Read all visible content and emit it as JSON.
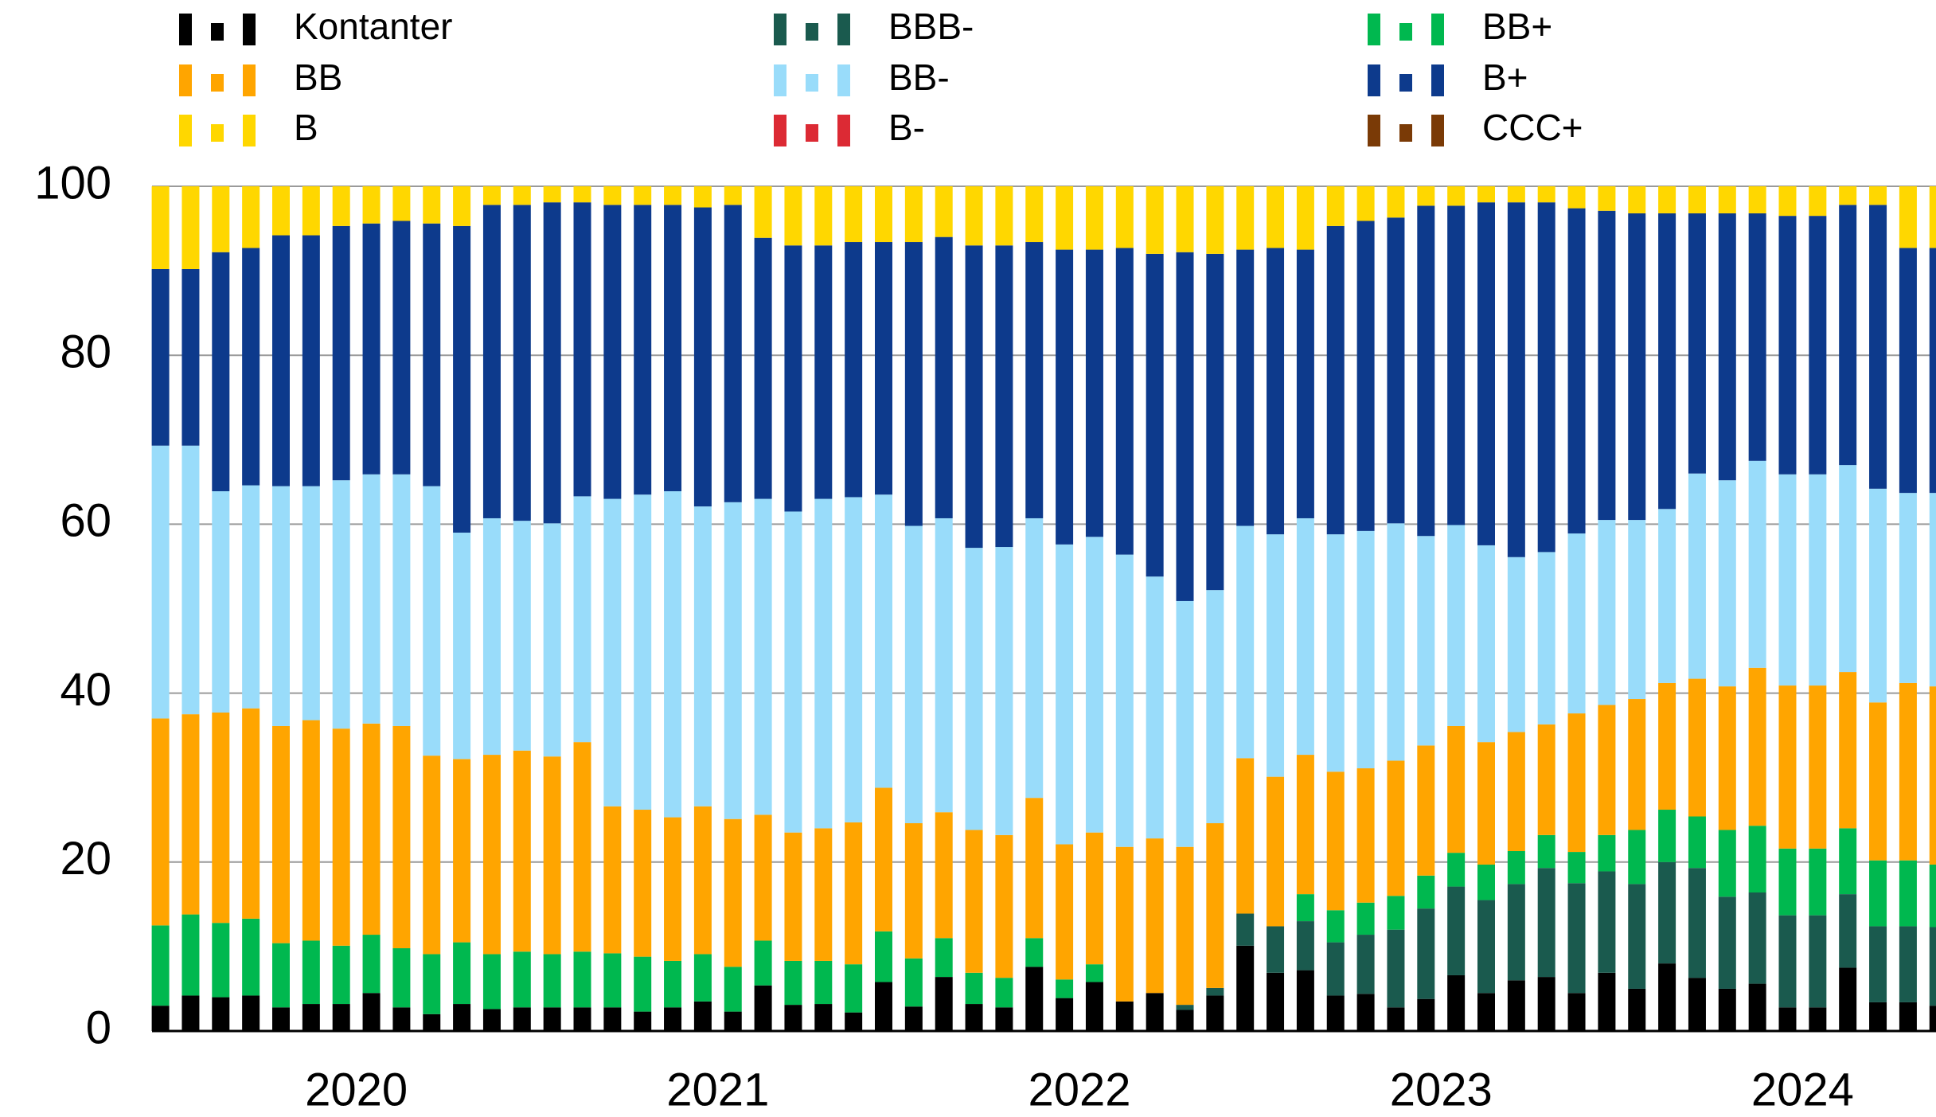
{
  "chart_data": {
    "type": "bar",
    "stacked": true,
    "categories": [
      null,
      "2020",
      null,
      null,
      null,
      null,
      null,
      null,
      null,
      null,
      null,
      null,
      null,
      "2021",
      null,
      null,
      null,
      null,
      null,
      null,
      null,
      null,
      null,
      null,
      null,
      "2022",
      null,
      null,
      null,
      null,
      null,
      null,
      null,
      null,
      null,
      null,
      null,
      "2023",
      null,
      null,
      null,
      null,
      null,
      null,
      null,
      null,
      null,
      null,
      null,
      "2024",
      null,
      null,
      null,
      null,
      null,
      null,
      null,
      null,
      null,
      null
    ],
    "ylim": [
      0,
      100
    ],
    "yticks": [
      0,
      20,
      40,
      60,
      80,
      100
    ],
    "grid": true,
    "legend": "top",
    "series": [
      {
        "name": "Kontanter",
        "color": "#000000",
        "values": [
          3,
          4.2,
          4,
          4.2,
          2.8,
          3.2,
          3.2,
          4.5,
          2.8,
          2,
          3.2,
          2.6,
          2.8,
          2.8,
          2.8,
          2.8,
          2.3,
          2.8,
          3.5,
          2.3,
          5.4,
          3.1,
          3.2,
          2.2,
          5.8,
          2.9,
          6.4,
          3.2,
          2.8,
          7.6,
          3.9,
          5.8,
          3.5,
          4.5,
          2.5,
          4.2,
          10.1,
          6.9,
          7.2,
          4.2,
          4.4,
          2.8,
          3.8,
          6.6,
          4.5,
          6,
          6.4,
          4.5,
          6.9,
          5,
          8,
          6.3,
          5,
          5.6,
          2.8,
          2.8,
          7.5,
          3.4,
          3.4,
          3
        ]
      },
      {
        "name": "BBB-",
        "color": "#1a5a4e",
        "values": [
          0,
          0,
          0,
          0,
          0,
          0,
          0,
          0,
          0,
          0,
          0,
          0,
          0,
          0,
          0,
          0,
          0,
          0,
          0,
          0,
          0,
          0,
          0,
          0,
          0,
          0,
          0,
          0,
          0,
          0,
          0,
          0,
          0,
          0,
          0.6,
          0.9,
          3.8,
          5.5,
          5.8,
          6.3,
          7,
          9.2,
          10.7,
          10.5,
          11,
          11.4,
          12.9,
          13,
          12,
          12.4,
          12,
          13,
          10.9,
          10.8,
          10.9,
          10.9,
          8.7,
          9,
          9,
          9.3
        ]
      },
      {
        "name": "BB+",
        "color": "#00b84f",
        "values": [
          9.5,
          9.6,
          8.8,
          9.1,
          7.6,
          7.5,
          6.9,
          6.9,
          7,
          7.1,
          7.3,
          6.5,
          6.6,
          6.3,
          6.6,
          6.4,
          6.5,
          5.5,
          5.6,
          5.3,
          5.3,
          5.2,
          5.1,
          5.7,
          6,
          5.7,
          4.6,
          3.7,
          3.5,
          3.4,
          2.2,
          2.1,
          0,
          0,
          0,
          0,
          0,
          0,
          3.2,
          3.8,
          3.8,
          4,
          3.9,
          4,
          4.2,
          3.9,
          3.9,
          3.7,
          4.3,
          6.4,
          6.2,
          6.1,
          7.9,
          7.9,
          7.9,
          7.9,
          7.8,
          7.8,
          7.8,
          7.4
        ]
      },
      {
        "name": "BB",
        "color": "#ffa500",
        "values": [
          24.5,
          23.7,
          24.9,
          24.9,
          25.7,
          26.1,
          25.7,
          25,
          26.3,
          23.5,
          21.7,
          23.6,
          23.8,
          23.4,
          24.8,
          17.4,
          17.4,
          17,
          17.5,
          17.5,
          14.9,
          15.2,
          15.7,
          16.8,
          17,
          16,
          14.9,
          16.9,
          16.9,
          16.6,
          16,
          15.6,
          18.3,
          18.3,
          18.7,
          19.5,
          18.4,
          17.7,
          16.5,
          16.4,
          15.9,
          16,
          15.4,
          15,
          14.5,
          14.1,
          13.1,
          16.4,
          15.4,
          15.5,
          15,
          16.3,
          17,
          18.7,
          19.3,
          19.3,
          18.5,
          18.7,
          21,
          21.1
        ]
      },
      {
        "name": "BB-",
        "color": "#99dcfa",
        "values": [
          32.3,
          31.8,
          26.2,
          26.4,
          28.4,
          27.7,
          29.4,
          29.5,
          29.8,
          31.9,
          26.8,
          28,
          27.2,
          27.6,
          29.1,
          36.4,
          37.3,
          38.6,
          35.5,
          37.5,
          37.4,
          38,
          39,
          38.5,
          34.7,
          35.2,
          34.8,
          33.4,
          34.1,
          33.1,
          35.5,
          35,
          34.6,
          31,
          29.1,
          27.6,
          27.5,
          28.7,
          28,
          28.1,
          28.1,
          28.1,
          24.8,
          23.8,
          23.3,
          20.7,
          20.4,
          21.3,
          21.9,
          21.2,
          20.6,
          24.3,
          24.4,
          24.5,
          25,
          25,
          24.5,
          25.3,
          22.5,
          22.9
        ]
      },
      {
        "name": "B+",
        "color": "#0d3a8c",
        "values": [
          20.9,
          20.9,
          28.3,
          28.1,
          29.7,
          29.7,
          30.1,
          29.7,
          30,
          31.1,
          36.3,
          37.1,
          37.4,
          38,
          34.8,
          34.8,
          34.3,
          33.9,
          35.4,
          35.2,
          30.9,
          31.5,
          30,
          30.2,
          29.9,
          33.6,
          33.3,
          35.8,
          35.7,
          32.7,
          34.9,
          34,
          36.3,
          38.2,
          41.3,
          39.8,
          32.7,
          33.9,
          31.8,
          36.5,
          36.7,
          36.2,
          39.1,
          37.8,
          40.6,
          42,
          41.4,
          38.5,
          36.6,
          36.3,
          35,
          30.8,
          31.6,
          29.3,
          30.6,
          30.6,
          30.8,
          33.6,
          29,
          29
        ]
      },
      {
        "name": "B",
        "color": "#ffd700",
        "values": [
          9.8,
          9.8,
          7.8,
          7.3,
          5.8,
          5.8,
          4.7,
          4.4,
          4.1,
          4.4,
          4.7,
          2.2,
          2.2,
          1.9,
          1.9,
          2.2,
          2.2,
          2.2,
          2.5,
          2.2,
          6.1,
          7,
          7,
          6.6,
          6.6,
          6.6,
          6,
          7,
          7,
          6.6,
          7.5,
          7.5,
          7.3,
          8,
          7.8,
          8,
          7.5,
          7.3,
          7.5,
          4.7,
          4.1,
          3.7,
          2.3,
          2.3,
          1.9,
          1.9,
          1.9,
          2.6,
          2.9,
          3.2,
          3.2,
          3.2,
          3.2,
          3.2,
          3.5,
          3.5,
          2.2,
          2.2,
          7.3,
          7.3
        ]
      },
      {
        "name": "B-",
        "color": "#dc2a34",
        "values": [
          0,
          0,
          0,
          0,
          0,
          0,
          0,
          0,
          0,
          0,
          0,
          0,
          0,
          0,
          0,
          0,
          0,
          0,
          0,
          0,
          0,
          0,
          0,
          0,
          0,
          0,
          0,
          0,
          0,
          0,
          0,
          0,
          0,
          0,
          0,
          0,
          0,
          0,
          0,
          0,
          0,
          0,
          0,
          0,
          0,
          0,
          0,
          0,
          0,
          0,
          0,
          0,
          0,
          0,
          0,
          0,
          0,
          0,
          0,
          0
        ]
      },
      {
        "name": "CCC+",
        "color": "#7a3a06",
        "values": [
          0,
          0,
          0,
          0,
          0,
          0,
          0,
          0,
          0,
          0,
          0,
          0,
          0,
          0,
          0,
          0,
          0,
          0,
          0,
          0,
          0,
          0,
          0,
          0,
          0,
          0,
          0,
          0,
          0,
          0,
          0,
          0,
          0,
          0,
          0,
          0,
          0,
          0,
          0,
          0,
          0,
          0,
          0,
          0,
          0,
          0,
          0,
          0,
          0,
          0,
          0,
          0,
          0,
          0,
          0,
          0,
          0,
          0,
          0,
          0
        ]
      }
    ]
  }
}
